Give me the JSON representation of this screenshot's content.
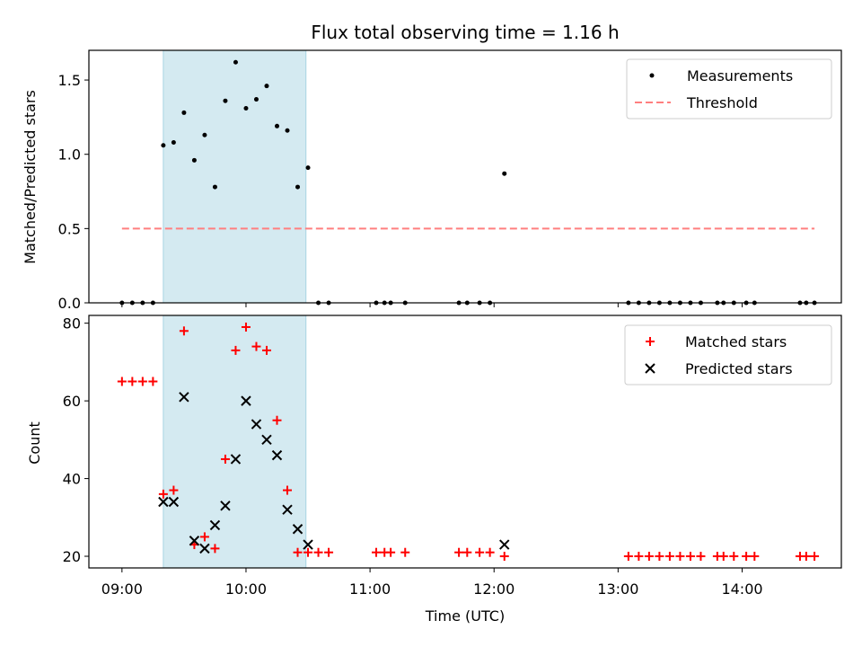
{
  "chart_data": [
    {
      "type": "scatter",
      "title": "Flux total observing time = 1.16 h",
      "xlabel": "",
      "ylabel": "Matched/Predicted stars",
      "ylim": [
        0,
        1.7
      ],
      "xlim": [
        "08:44",
        "14:48"
      ],
      "yticks": [
        "0.0",
        "0.5",
        "1.0",
        "1.5"
      ],
      "shaded_region": [
        "09:20",
        "10:29"
      ],
      "shaded_color": "#d4eaf1",
      "legend": "top-right",
      "grid": false,
      "series": [
        {
          "name": "Measurements",
          "color": "#000000",
          "points": [
            [
              "09:00",
              0.0
            ],
            [
              "09:05",
              0.0
            ],
            [
              "09:10",
              0.0
            ],
            [
              "09:15",
              0.0
            ],
            [
              "09:20",
              1.06
            ],
            [
              "09:25",
              1.08
            ],
            [
              "09:30",
              1.28
            ],
            [
              "09:35",
              0.96
            ],
            [
              "09:40",
              1.13
            ],
            [
              "09:45",
              0.78
            ],
            [
              "09:50",
              1.36
            ],
            [
              "09:55",
              1.62
            ],
            [
              "10:00",
              1.31
            ],
            [
              "10:05",
              1.37
            ],
            [
              "10:10",
              1.46
            ],
            [
              "10:15",
              1.19
            ],
            [
              "10:20",
              1.16
            ],
            [
              "10:25",
              0.78
            ],
            [
              "10:30",
              0.91
            ],
            [
              "10:35",
              0.0
            ],
            [
              "10:40",
              0.0
            ],
            [
              "11:03",
              0.0
            ],
            [
              "11:07",
              0.0
            ],
            [
              "11:10",
              0.0
            ],
            [
              "11:17",
              0.0
            ],
            [
              "11:43",
              0.0
            ],
            [
              "11:47",
              0.0
            ],
            [
              "11:53",
              0.0
            ],
            [
              "11:58",
              0.0
            ],
            [
              "12:05",
              0.87
            ],
            [
              "13:05",
              0.0
            ],
            [
              "13:10",
              0.0
            ],
            [
              "13:15",
              0.0
            ],
            [
              "13:20",
              0.0
            ],
            [
              "13:25",
              0.0
            ],
            [
              "13:30",
              0.0
            ],
            [
              "13:35",
              0.0
            ],
            [
              "13:40",
              0.0
            ],
            [
              "13:48",
              0.0
            ],
            [
              "13:51",
              0.0
            ],
            [
              "13:56",
              0.0
            ],
            [
              "14:02",
              0.0
            ],
            [
              "14:06",
              0.0
            ],
            [
              "14:28",
              0.0
            ],
            [
              "14:31",
              0.0
            ],
            [
              "14:35",
              0.0
            ]
          ]
        },
        {
          "name": "Threshold",
          "color": "#ff7f7f",
          "style": "dashed",
          "points": [
            [
              "09:00",
              0.5
            ],
            [
              "14:35",
              0.5
            ]
          ]
        }
      ]
    },
    {
      "type": "scatter",
      "title": "",
      "xlabel": "Time (UTC)",
      "ylabel": "Count",
      "ylim": [
        17,
        82
      ],
      "xlim": [
        "08:44",
        "14:48"
      ],
      "xticks": [
        "09:00",
        "10:00",
        "11:00",
        "12:00",
        "13:00",
        "14:00"
      ],
      "yticks": [
        "20",
        "40",
        "60",
        "80"
      ],
      "shaded_region": [
        "09:20",
        "10:29"
      ],
      "legend": "top-right",
      "grid": false,
      "series": [
        {
          "name": "Matched stars",
          "color": "#ff0000",
          "marker": "plus",
          "points": [
            [
              "09:00",
              65
            ],
            [
              "09:05",
              65
            ],
            [
              "09:10",
              65
            ],
            [
              "09:15",
              65
            ],
            [
              "09:20",
              36
            ],
            [
              "09:25",
              37
            ],
            [
              "09:30",
              78
            ],
            [
              "09:35",
              23
            ],
            [
              "09:40",
              25
            ],
            [
              "09:45",
              22
            ],
            [
              "09:50",
              45
            ],
            [
              "09:55",
              73
            ],
            [
              "10:00",
              79
            ],
            [
              "10:05",
              74
            ],
            [
              "10:10",
              73
            ],
            [
              "10:15",
              55
            ],
            [
              "10:20",
              37
            ],
            [
              "10:25",
              21
            ],
            [
              "10:30",
              21
            ],
            [
              "10:35",
              21
            ],
            [
              "10:40",
              21
            ],
            [
              "11:03",
              21
            ],
            [
              "11:07",
              21
            ],
            [
              "11:10",
              21
            ],
            [
              "11:17",
              21
            ],
            [
              "11:43",
              21
            ],
            [
              "11:47",
              21
            ],
            [
              "11:53",
              21
            ],
            [
              "11:58",
              21
            ],
            [
              "12:05",
              20
            ],
            [
              "13:05",
              20
            ],
            [
              "13:10",
              20
            ],
            [
              "13:15",
              20
            ],
            [
              "13:20",
              20
            ],
            [
              "13:25",
              20
            ],
            [
              "13:30",
              20
            ],
            [
              "13:35",
              20
            ],
            [
              "13:40",
              20
            ],
            [
              "13:48",
              20
            ],
            [
              "13:51",
              20
            ],
            [
              "13:56",
              20
            ],
            [
              "14:02",
              20
            ],
            [
              "14:06",
              20
            ],
            [
              "14:28",
              20
            ],
            [
              "14:31",
              20
            ],
            [
              "14:35",
              20
            ]
          ]
        },
        {
          "name": "Predicted stars",
          "color": "#000000",
          "marker": "x",
          "points": [
            [
              "09:20",
              34
            ],
            [
              "09:25",
              34
            ],
            [
              "09:30",
              61
            ],
            [
              "09:35",
              24
            ],
            [
              "09:40",
              22
            ],
            [
              "09:45",
              28
            ],
            [
              "09:50",
              33
            ],
            [
              "09:55",
              45
            ],
            [
              "10:00",
              60
            ],
            [
              "10:05",
              54
            ],
            [
              "10:10",
              50
            ],
            [
              "10:15",
              46
            ],
            [
              "10:20",
              32
            ],
            [
              "10:25",
              27
            ],
            [
              "10:30",
              23
            ],
            [
              "12:05",
              23
            ]
          ]
        }
      ]
    }
  ]
}
